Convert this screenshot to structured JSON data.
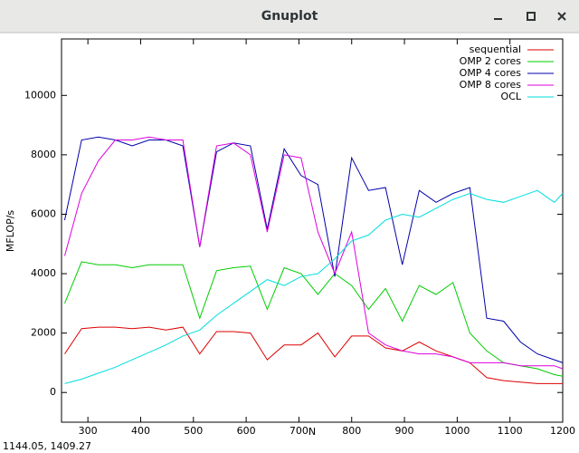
{
  "window": {
    "title": "Gnuplot",
    "status": "1144.05,  1409.27"
  },
  "chart_data": {
    "type": "line",
    "x_label": "N",
    "y_label": "MFLOP/s",
    "xlim": [
      250,
      1200
    ],
    "ylim": [
      -1000,
      11900
    ],
    "xticks": [
      300,
      400,
      500,
      600,
      700,
      800,
      900,
      1000,
      1100,
      1200
    ],
    "yticks": [
      0,
      2000,
      4000,
      6000,
      8000,
      10000
    ],
    "grid": false,
    "legend": "top-right",
    "x": [
      256,
      288,
      320,
      352,
      384,
      416,
      448,
      480,
      512,
      544,
      576,
      608,
      640,
      672,
      704,
      736,
      768,
      800,
      832,
      864,
      896,
      928,
      960,
      992,
      1024,
      1056,
      1088,
      1120,
      1152,
      1184,
      1200
    ],
    "series": [
      {
        "name": "sequential",
        "color": "#dd0000",
        "values": [
          1300,
          2150,
          2200,
          2200,
          2150,
          2200,
          2100,
          2200,
          1300,
          2050,
          2050,
          2000,
          1100,
          1600,
          1600,
          2000,
          1200,
          1900,
          1900,
          1500,
          1400,
          1700,
          1400,
          1200,
          1000,
          500,
          400,
          350,
          300,
          300,
          300
        ]
      },
      {
        "name": "OMP 2 cores",
        "color": "#00cc00",
        "values": [
          3000,
          4400,
          4300,
          4300,
          4200,
          4300,
          4300,
          4300,
          2500,
          4100,
          4200,
          4250,
          2800,
          4200,
          4000,
          3300,
          4000,
          3600,
          2800,
          3500,
          2400,
          3600,
          3300,
          3700,
          2000,
          1400,
          1000,
          900,
          800,
          600,
          550
        ]
      },
      {
        "name": "OMP 4 cores",
        "color": "#0000aa",
        "values": [
          5800,
          8500,
          8600,
          8500,
          8300,
          8500,
          8500,
          8300,
          4900,
          8100,
          8400,
          8300,
          5500,
          8200,
          7300,
          7000,
          3900,
          7900,
          6800,
          6900,
          4300,
          6800,
          6400,
          6700,
          6900,
          2500,
          2400,
          1700,
          1300,
          1100,
          1000
        ]
      },
      {
        "name": "OMP 8 cores",
        "color": "#dd00dd",
        "values": [
          4600,
          6700,
          7800,
          8500,
          8500,
          8600,
          8500,
          8500,
          4900,
          8300,
          8400,
          8000,
          5400,
          8000,
          7900,
          5400,
          4000,
          5400,
          2000,
          1600,
          1400,
          1300,
          1300,
          1200,
          1000,
          1000,
          1000,
          900,
          900,
          900,
          800
        ]
      },
      {
        "name": "OCL",
        "color": "#00dddd",
        "values": [
          300,
          450,
          650,
          850,
          1100,
          1350,
          1600,
          1900,
          2100,
          2600,
          3000,
          3400,
          3800,
          3600,
          3900,
          4000,
          4500,
          5100,
          5300,
          5800,
          6000,
          5900,
          6200,
          6500,
          6700,
          6500,
          6400,
          6600,
          6800,
          6400,
          6700
        ]
      }
    ]
  }
}
